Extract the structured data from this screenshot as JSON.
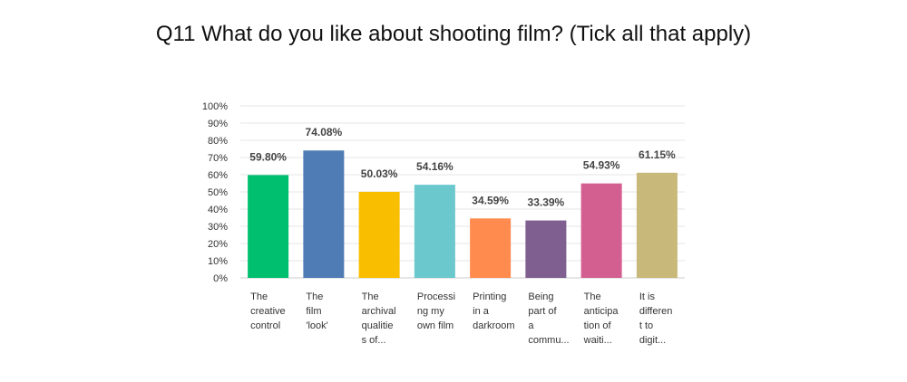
{
  "chart_data": {
    "type": "bar",
    "title": "Q11 What do you like about shooting film? (Tick all that apply)",
    "categories": [
      "The creative control",
      "The film 'look'",
      "The archival qualities of...",
      "Processing my own film",
      "Printing in a darkroom",
      "Being part of a commu...",
      "The anticipation of waiti...",
      "It is different to digit..."
    ],
    "category_lines": [
      [
        "The",
        "creative",
        "control"
      ],
      [
        "The",
        "film",
        "'look'"
      ],
      [
        "The",
        "archival",
        "qualitie",
        "s of..."
      ],
      [
        "Processi",
        "ng my",
        "own film"
      ],
      [
        "Printing",
        "in a",
        "darkroom"
      ],
      [
        "Being",
        "part of",
        "a",
        "commu..."
      ],
      [
        "The",
        "anticipa",
        "tion of",
        "waiti..."
      ],
      [
        "It is",
        "differen",
        "t to",
        "digit..."
      ]
    ],
    "values": [
      59.8,
      74.08,
      50.03,
      54.16,
      34.59,
      33.39,
      54.93,
      61.15
    ],
    "value_labels": [
      "59.80%",
      "74.08%",
      "50.03%",
      "54.16%",
      "34.59%",
      "33.39%",
      "54.93%",
      "61.15%"
    ],
    "colors": [
      "#00bf6f",
      "#507cb6",
      "#f9be00",
      "#6bc8cd",
      "#ff8b4f",
      "#7f5f90",
      "#d25f90",
      "#c8b87a"
    ],
    "yticks": [
      "0%",
      "10%",
      "20%",
      "30%",
      "40%",
      "50%",
      "60%",
      "70%",
      "80%",
      "90%",
      "100%"
    ],
    "ylim": [
      0,
      100
    ],
    "grid": true,
    "xlabel": "",
    "ylabel": ""
  }
}
